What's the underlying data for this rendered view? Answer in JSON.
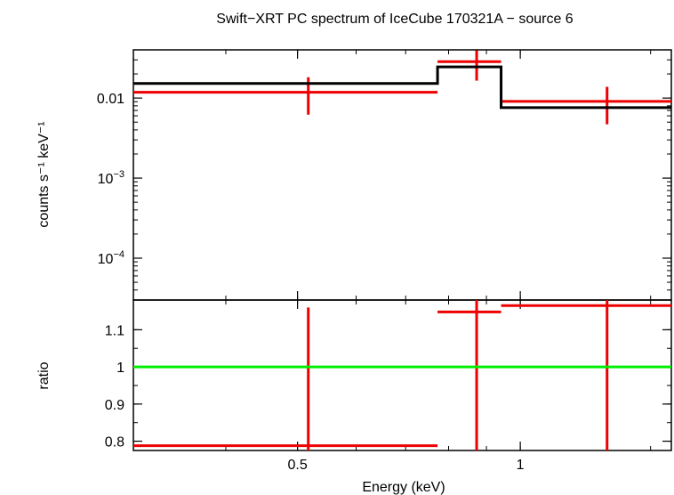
{
  "title": "Swift−XRT PC spectrum of IceCube 170321A − source 6",
  "colors": {
    "data": "#ee0000",
    "model": "#000000",
    "unity": "#00ee00",
    "axis": "#000000"
  },
  "chart_data": [
    {
      "type": "line",
      "panel": "spectrum",
      "xlabel": "Energy (keV)",
      "ylabel": "counts s⁻¹ keV⁻¹",
      "xscale": "log",
      "yscale": "log",
      "xlim": [
        0.3,
        1.6
      ],
      "ylim": [
        3e-05,
        0.04
      ],
      "yticks": [
        {
          "value": 0.01,
          "label": "0.01",
          "sup": ""
        },
        {
          "value": 0.001,
          "label": "10",
          "sup": "−3"
        },
        {
          "value": 0.0001,
          "label": "10",
          "sup": "−4"
        }
      ],
      "series": [
        {
          "role": "data",
          "style": "error-cross",
          "points": [
            {
              "x": 0.517,
              "xlo": 0.3,
              "xhi": 0.773,
              "y": 0.0118,
              "ylo": 0.0062,
              "yhi": 0.0182
            },
            {
              "x": 0.873,
              "xlo": 0.773,
              "xhi": 0.942,
              "y": 0.0285,
              "ylo": 0.0165,
              "yhi": 0.0395
            },
            {
              "x": 1.31,
              "xlo": 0.942,
              "xhi": 1.6,
              "y": 0.0091,
              "ylo": 0.0047,
              "yhi": 0.0138
            }
          ]
        },
        {
          "role": "model",
          "style": "step",
          "steps": [
            {
              "xlo": 0.3,
              "xhi": 0.773,
              "y": 0.0152
            },
            {
              "xlo": 0.773,
              "xhi": 0.942,
              "y": 0.0245
            },
            {
              "xlo": 0.942,
              "xhi": 1.6,
              "y": 0.0076
            }
          ]
        }
      ]
    },
    {
      "type": "line",
      "panel": "ratio",
      "xlabel": "Energy (keV)",
      "ylabel": "ratio",
      "xscale": "log",
      "xlim": [
        0.3,
        1.6
      ],
      "ylim": [
        0.775,
        1.18
      ],
      "xticks": [
        {
          "value": 0.5,
          "label": "0.5"
        },
        {
          "value": 1,
          "label": "1"
        }
      ],
      "yticks": [
        {
          "value": 0.8,
          "label": "0.8"
        },
        {
          "value": 0.9,
          "label": "0.9"
        },
        {
          "value": 1.0,
          "label": "1"
        },
        {
          "value": 1.1,
          "label": "1.1"
        }
      ],
      "series": [
        {
          "role": "data",
          "style": "error-cross",
          "points": [
            {
              "x": 0.517,
              "xlo": 0.3,
              "xhi": 0.773,
              "y": 0.788,
              "ylo": 0.775,
              "yhi": 1.16
            },
            {
              "x": 0.873,
              "xlo": 0.773,
              "xhi": 0.942,
              "y": 1.148,
              "ylo": 0.775,
              "yhi": 1.18
            },
            {
              "x": 1.31,
              "xlo": 0.942,
              "xhi": 1.6,
              "y": 1.165,
              "ylo": 0.775,
              "yhi": 1.18
            }
          ]
        },
        {
          "role": "unity",
          "style": "hline",
          "y": 1.0
        }
      ]
    }
  ]
}
